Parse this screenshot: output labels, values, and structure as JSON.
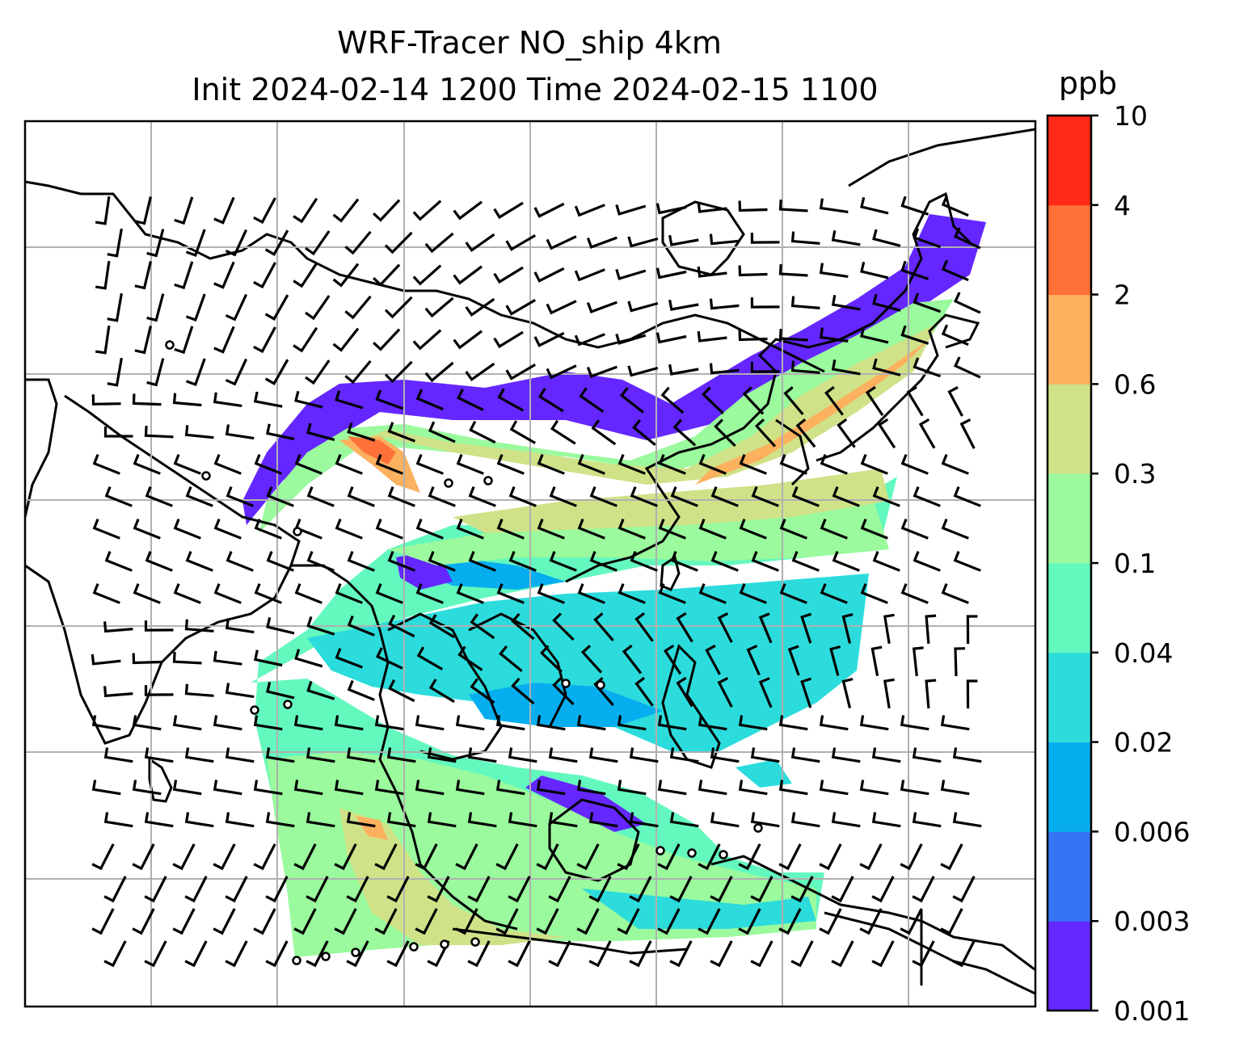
{
  "figure": {
    "title_line1": "WRF-Tracer NO_ship 4km",
    "title_line2": "Init 2024-02-14 1200 Time 2024-02-15 1100"
  },
  "colorbar": {
    "unit": "ppb",
    "levels": [
      "0.001",
      "0.003",
      "0.006",
      "0.02",
      "0.04",
      "0.1",
      "0.3",
      "0.6",
      "2",
      "4",
      "10"
    ],
    "colors": [
      "#6427ff",
      "#3574f4",
      "#06aeef",
      "#2cdcdc",
      "#63f9be",
      "#9afa9d",
      "#cfe288",
      "#fcb15f",
      "#ff7139",
      "#ff2a18"
    ]
  },
  "map": {
    "gridlines": true,
    "coastline_color": "#000000",
    "field_name": "NO_ship",
    "overlay": "wind barbs"
  }
}
